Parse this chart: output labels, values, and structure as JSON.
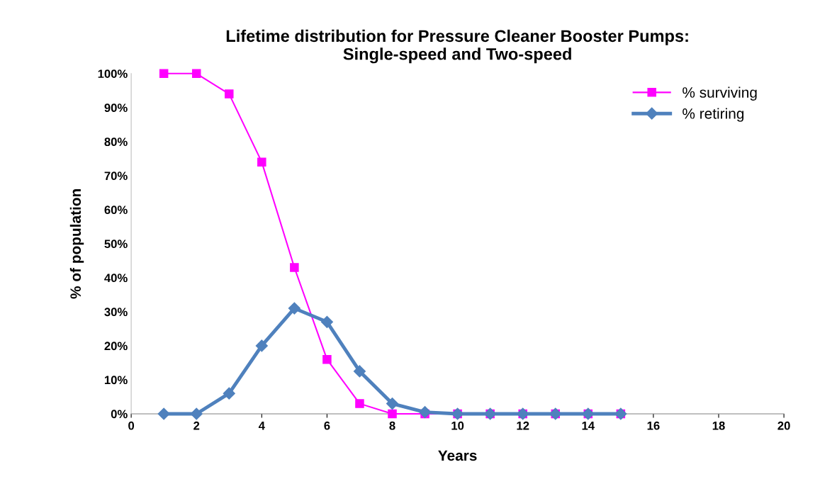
{
  "chart_data": {
    "type": "line",
    "title": "Lifetime distribution for Pressure Cleaner Booster Pumps:\nSingle-speed and Two-speed",
    "xlabel": "Years",
    "ylabel": "% of population",
    "x": [
      1,
      2,
      3,
      4,
      5,
      6,
      7,
      8,
      9,
      10,
      11,
      12,
      13,
      14,
      15
    ],
    "series": [
      {
        "name": "% surviving",
        "color": "#ff00ff",
        "marker": "square",
        "values": [
          100,
          100,
          94,
          74,
          43,
          16,
          3,
          0,
          0,
          0,
          0,
          0,
          0,
          0,
          0
        ]
      },
      {
        "name": "% retiring",
        "color": "#4f81bd",
        "marker": "diamond",
        "values": [
          0,
          0,
          6,
          20,
          31,
          27,
          12.5,
          3,
          0.5,
          0,
          0,
          0,
          0,
          0,
          0
        ]
      }
    ],
    "xlim": [
      0,
      20
    ],
    "xticks": [
      0,
      2,
      4,
      6,
      8,
      10,
      12,
      14,
      16,
      18,
      20
    ],
    "ylim": [
      0,
      100
    ],
    "yticks": [
      {
        "value": 0,
        "label": "0%"
      },
      {
        "value": 10,
        "label": "10%"
      },
      {
        "value": 20,
        "label": "20%"
      },
      {
        "value": 30,
        "label": "30%"
      },
      {
        "value": 40,
        "label": "40%"
      },
      {
        "value": 50,
        "label": "50%"
      },
      {
        "value": 60,
        "label": "60%"
      },
      {
        "value": 70,
        "label": "70%"
      },
      {
        "value": 80,
        "label": "80%"
      },
      {
        "value": 90,
        "label": "90%"
      },
      {
        "value": 100,
        "label": "100%"
      }
    ],
    "grid": false,
    "legend": "top right"
  }
}
